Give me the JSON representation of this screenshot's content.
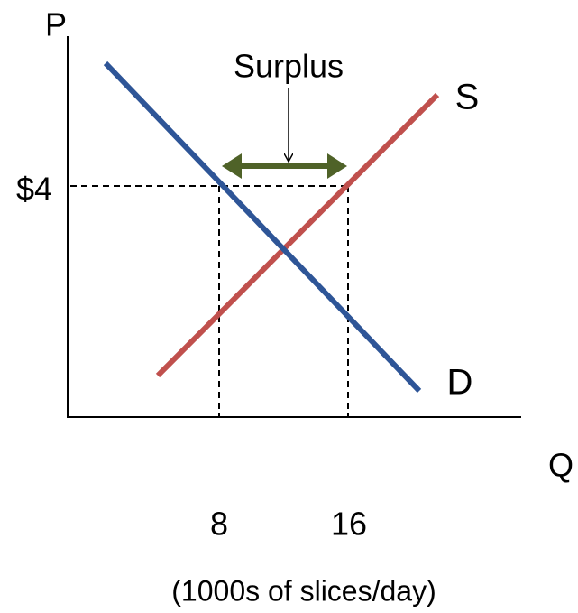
{
  "axes": {
    "y_label": "P",
    "x_label": "Q",
    "x_unit": "(1000s of slices/day)"
  },
  "curves": {
    "supply": "S",
    "demand": "D"
  },
  "annotation": "Surplus",
  "price_label": "$4",
  "quantity_labels": [
    "8",
    "16"
  ]
}
